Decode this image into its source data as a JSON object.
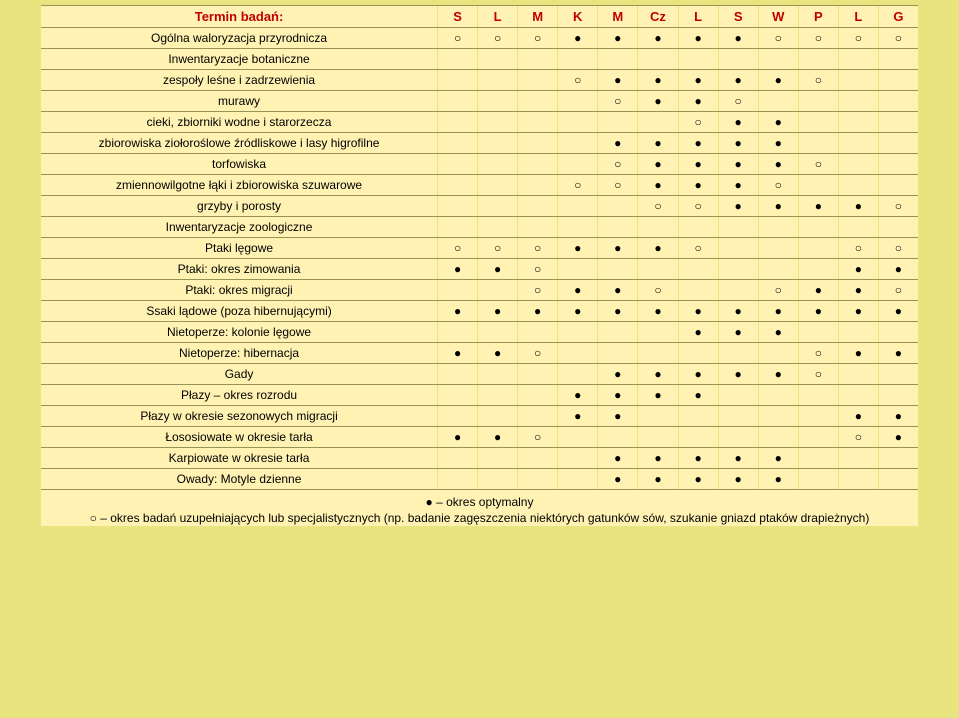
{
  "colors": {
    "page_bg": "#e8e480",
    "row_bg": "#fff2b3",
    "header_text": "#c00000",
    "text": "#000000"
  },
  "symbols": {
    "optimal": "●",
    "suppl": "○"
  },
  "header": {
    "label": "Termin badań:",
    "months": [
      "S",
      "L",
      "M",
      "K",
      "M",
      "Cz",
      "L",
      "S",
      "W",
      "P",
      "L",
      "G"
    ]
  },
  "section1": "Inwentaryzacje botaniczne",
  "section2": "Inwentaryzacje zoologiczne",
  "rows1": [
    {
      "label": "Ogólna waloryzacja przyrodnicza",
      "marks": [
        "○",
        "○",
        "○",
        "●",
        "●",
        "●",
        "●",
        "●",
        "○",
        "○",
        "○",
        "○"
      ]
    }
  ],
  "rows2": [
    {
      "label": "zespoły leśne i zadrzewienia",
      "marks": [
        "",
        "",
        "",
        "○",
        "●",
        "●",
        "●",
        "●",
        "●",
        "○",
        "",
        ""
      ]
    },
    {
      "label": "murawy",
      "marks": [
        "",
        "",
        "",
        "",
        "○",
        "●",
        "●",
        "○",
        "",
        "",
        "",
        ""
      ]
    },
    {
      "label": "cieki, zbiorniki wodne i starorzecza",
      "marks": [
        "",
        "",
        "",
        "",
        "",
        "",
        "○",
        "●",
        "●",
        "",
        "",
        ""
      ]
    },
    {
      "label": "zbiorowiska ziołoroślowe źródliskowe i lasy higrofilne",
      "marks": [
        "",
        "",
        "",
        "",
        "●",
        "●",
        "●",
        "●",
        "●",
        "",
        "",
        ""
      ]
    },
    {
      "label": "torfowiska",
      "marks": [
        "",
        "",
        "",
        "",
        "○",
        "●",
        "●",
        "●",
        "●",
        "○",
        "",
        ""
      ]
    },
    {
      "label": "zmiennowilgotne łąki i zbiorowiska szuwarowe",
      "marks": [
        "",
        "",
        "",
        "○",
        "○",
        "●",
        "●",
        "●",
        "○",
        "",
        "",
        ""
      ]
    },
    {
      "label": "grzyby i porosty",
      "marks": [
        "",
        "",
        "",
        "",
        "",
        "○",
        "○",
        "●",
        "●",
        "●",
        "●",
        "○"
      ]
    }
  ],
  "rows3": [
    {
      "label": "Ptaki lęgowe",
      "marks": [
        "○",
        "○",
        "○",
        "●",
        "●",
        "●",
        "○",
        "",
        "",
        "",
        "○",
        "○"
      ]
    },
    {
      "label": "Ptaki: okres zimowania",
      "marks": [
        "●",
        "●",
        "○",
        "",
        "",
        "",
        "",
        "",
        "",
        "",
        "●",
        "●"
      ]
    },
    {
      "label": "Ptaki: okres migracji",
      "marks": [
        "",
        "",
        "○",
        "●",
        "●",
        "○",
        "",
        "",
        "○",
        "●",
        "●",
        "○"
      ]
    },
    {
      "label": "Ssaki lądowe (poza hibernującymi)",
      "marks": [
        "●",
        "●",
        "●",
        "●",
        "●",
        "●",
        "●",
        "●",
        "●",
        "●",
        "●",
        "●"
      ]
    },
    {
      "label": "Nietoperze: kolonie lęgowe",
      "marks": [
        "",
        "",
        "",
        "",
        "",
        "",
        "●",
        "●",
        "●",
        "",
        "",
        ""
      ]
    },
    {
      "label": "Nietoperze: hibernacja",
      "marks": [
        "●",
        "●",
        "○",
        "",
        "",
        "",
        "",
        "",
        "",
        "○",
        "●",
        "●"
      ]
    },
    {
      "label": "Gady",
      "marks": [
        "",
        "",
        "",
        "",
        "●",
        "●",
        "●",
        "●",
        "●",
        "○",
        "",
        ""
      ]
    },
    {
      "label": "Płazy – okres rozrodu",
      "marks": [
        "",
        "",
        "",
        "●",
        "●",
        "●",
        "●",
        "",
        "",
        "",
        "",
        ""
      ]
    },
    {
      "label": "Płazy w okresie sezonowych migracji",
      "marks": [
        "",
        "",
        "",
        "●",
        "●",
        "",
        "",
        "",
        "",
        "",
        "●",
        "●"
      ]
    },
    {
      "label": "Łososiowate w okresie tarła",
      "marks": [
        "●",
        "●",
        "○",
        "",
        "",
        "",
        "",
        "",
        "",
        "",
        "○",
        "●"
      ]
    },
    {
      "label": "Karpiowate w okresie tarła",
      "marks": [
        "",
        "",
        "",
        "",
        "●",
        "●",
        "●",
        "●",
        "●",
        "",
        "",
        ""
      ]
    },
    {
      "label": "Owady: Motyle dzienne",
      "marks": [
        "",
        "",
        "",
        "",
        "●",
        "●",
        "●",
        "●",
        "●",
        "",
        "",
        ""
      ]
    }
  ],
  "legend": {
    "line1": "● – okres optymalny",
    "line2": "○ – okres badań uzupełniających lub specjalistycznych (np. badanie zagęszczenia niektórych gatunków sów, szukanie gniazd ptaków drapieżnych)"
  }
}
